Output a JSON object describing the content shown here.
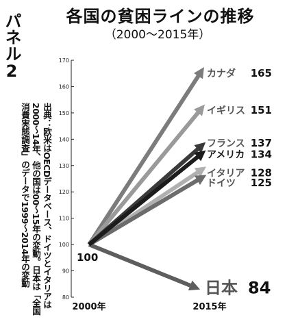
{
  "header": {
    "title": "各国の貧困ラインの推移",
    "subtitle": "（2000〜2015年）",
    "panel": "パネル2"
  },
  "source": {
    "lines": [
      "出典：欧米はOECDデータベース、ドイツとイタリアは",
      "2000〜14年、他の国は00〜15年の変動。日本は「全国",
      "消費実態調査」のデータで1999〜2014年の変動"
    ]
  },
  "chart_data": {
    "type": "line",
    "x": [
      "2000年",
      "2015年"
    ],
    "ylim": [
      80,
      170
    ],
    "yticks": [
      80,
      90,
      100,
      110,
      120,
      130,
      140,
      150,
      160,
      170
    ],
    "start_label": "100",
    "series": [
      {
        "name": "カナダ",
        "values": [
          100,
          165
        ],
        "color": "#7c7c7c"
      },
      {
        "name": "イギリス",
        "values": [
          100,
          151
        ],
        "color": "#9a9a9a"
      },
      {
        "name": "フランス",
        "values": [
          100,
          137
        ],
        "color": "#3a3a3a"
      },
      {
        "name": "アメリカ",
        "values": [
          100,
          134
        ],
        "color": "#1c1c1c"
      },
      {
        "name": "イタリア",
        "values": [
          100,
          128
        ],
        "color": "#b0b0b0"
      },
      {
        "name": "ドイツ",
        "values": [
          100,
          125
        ],
        "color": "#6c6c6c"
      },
      {
        "name": "日本",
        "values": [
          100,
          84
        ],
        "color": "#5e5e5e"
      }
    ]
  }
}
